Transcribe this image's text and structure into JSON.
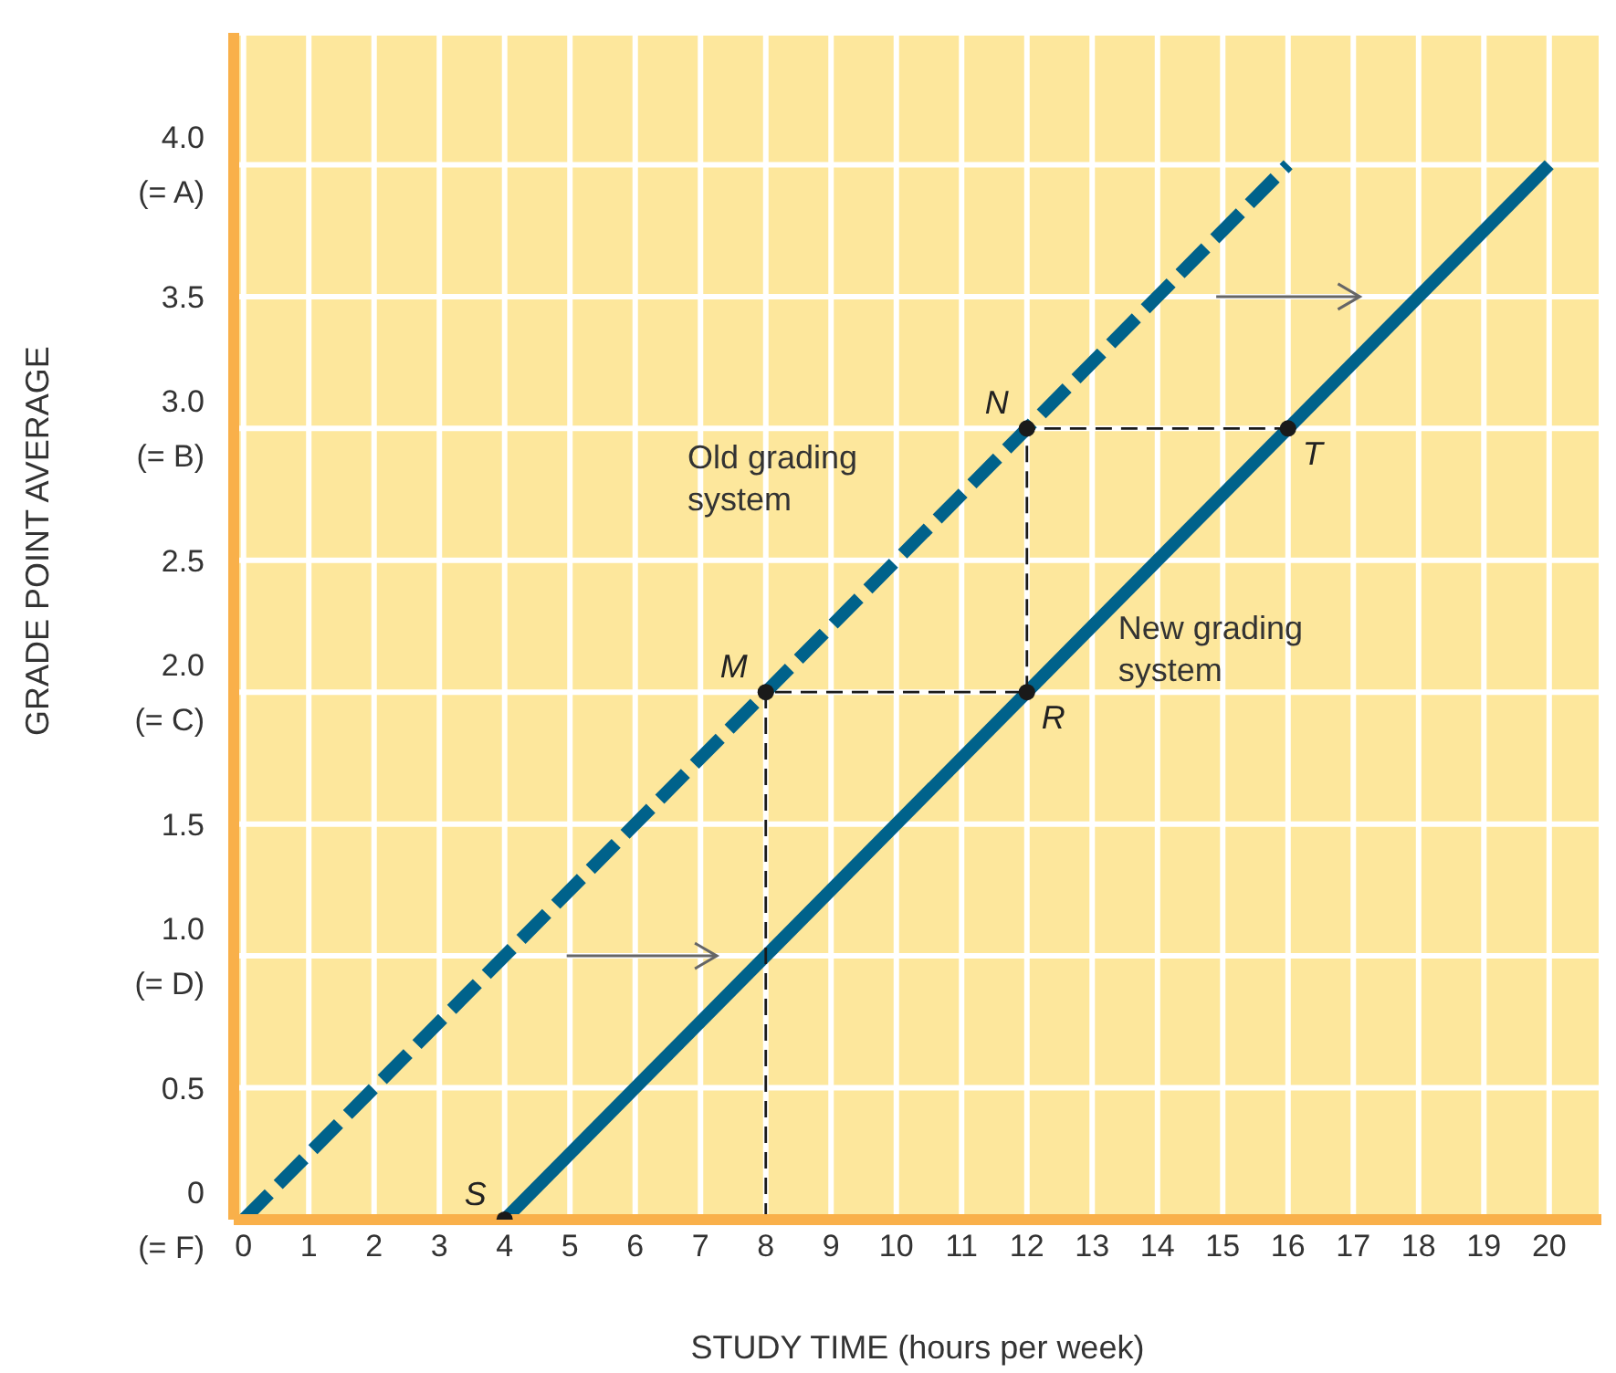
{
  "chart_data": {
    "type": "line",
    "xlabel": "STUDY TIME (hours per week)",
    "ylabel": "GRADE  POINT AVERAGE",
    "xlim": [
      -0.15,
      20.8
    ],
    "ylim": [
      0,
      4.5
    ],
    "xticks": [
      0,
      1,
      2,
      3,
      4,
      5,
      6,
      7,
      8,
      9,
      10,
      11,
      12,
      13,
      14,
      15,
      16,
      17,
      18,
      19,
      20
    ],
    "yticks": [
      {
        "value": 0,
        "label": "0\n(= F)"
      },
      {
        "value": 0.5,
        "label": "0.5"
      },
      {
        "value": 1,
        "label": "1.0\n(= D)"
      },
      {
        "value": 1.5,
        "label": "1.5"
      },
      {
        "value": 2,
        "label": "2.0\n(= C)"
      },
      {
        "value": 2.5,
        "label": "2.5"
      },
      {
        "value": 3,
        "label": "3.0\n(= B)"
      },
      {
        "value": 3.5,
        "label": "3.5"
      },
      {
        "value": 4,
        "label": "4.0\n(= A)"
      }
    ],
    "grid": true,
    "legend": false,
    "series": [
      {
        "name": "Old grading system",
        "color": "#00628b",
        "line_style": "dashed",
        "marker": "none",
        "x": [
          0,
          16
        ],
        "values": [
          0,
          4
        ]
      },
      {
        "name": "New grading system",
        "color": "#00628b",
        "line_style": "solid",
        "marker": "none",
        "x": [
          4,
          20
        ],
        "values": [
          0,
          4
        ]
      },
      {
        "type": "line",
        "color": "#1a1a1a",
        "line_style": "dashed",
        "marker": "none",
        "x": [
          8,
          8,
          12
        ],
        "values": [
          0,
          2,
          2
        ]
      },
      {
        "type": "line",
        "color": "#1a1a1a",
        "line_style": "dashed",
        "marker": "none",
        "x": [
          12,
          12,
          16
        ],
        "values": [
          2,
          3,
          3
        ]
      },
      {
        "type": "scatter",
        "color": "#1a1a1a",
        "marker": "circle",
        "x": [
          4,
          8,
          12,
          12,
          16
        ],
        "values": [
          0,
          2,
          2,
          3,
          3
        ]
      }
    ],
    "annotations": [
      {
        "text": "S",
        "x": 4,
        "y": 0
      },
      {
        "text": "M",
        "x": 8,
        "y": 2
      },
      {
        "text": "R",
        "x": 12,
        "y": 2
      },
      {
        "text": "N",
        "x": 12,
        "y": 3
      },
      {
        "text": "T",
        "x": 16,
        "y": 3
      }
    ]
  }
}
